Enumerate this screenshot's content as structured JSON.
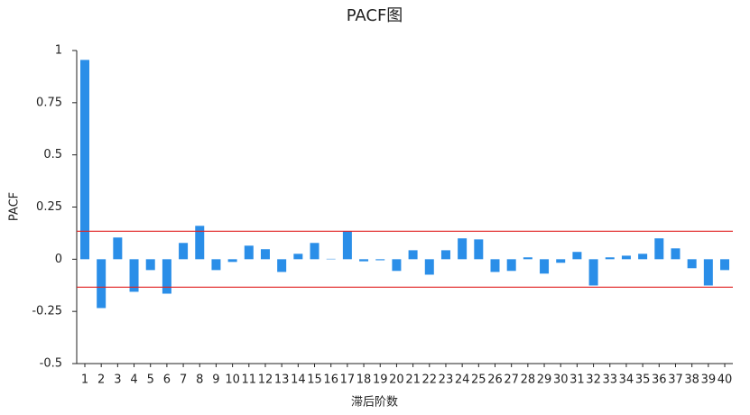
{
  "chart_data": {
    "type": "bar",
    "title": "PACF图",
    "x_label": "滞后阶数",
    "y_label": "PACF",
    "categories": [
      "1",
      "2",
      "3",
      "4",
      "5",
      "6",
      "7",
      "8",
      "9",
      "10",
      "11",
      "12",
      "13",
      "14",
      "15",
      "16",
      "17",
      "18",
      "19",
      "20",
      "21",
      "22",
      "23",
      "24",
      "25",
      "26",
      "27",
      "28",
      "29",
      "30",
      "31",
      "32",
      "33",
      "34",
      "35",
      "36",
      "37",
      "38",
      "39",
      "40"
    ],
    "values": [
      0.955,
      -0.234,
      0.104,
      -0.156,
      -0.052,
      -0.165,
      0.078,
      0.16,
      -0.052,
      -0.013,
      0.065,
      0.048,
      -0.061,
      0.026,
      0.078,
      0.002,
      0.134,
      -0.01,
      -0.005,
      -0.056,
      0.043,
      -0.074,
      0.043,
      0.1,
      0.095,
      -0.061,
      -0.056,
      0.009,
      -0.069,
      -0.017,
      0.035,
      -0.126,
      0.009,
      0.017,
      0.026,
      0.1,
      0.052,
      -0.043,
      -0.126,
      -0.052
    ],
    "color": "#2a8ee8",
    "ylim": [
      -0.5,
      1
    ],
    "yticks": [
      1,
      0.75,
      0.5,
      0.25,
      0,
      -0.25,
      -0.5
    ],
    "reference_lines": {
      "values": [
        0.134,
        -0.134
      ],
      "color": "#e02020"
    },
    "grid": false
  }
}
